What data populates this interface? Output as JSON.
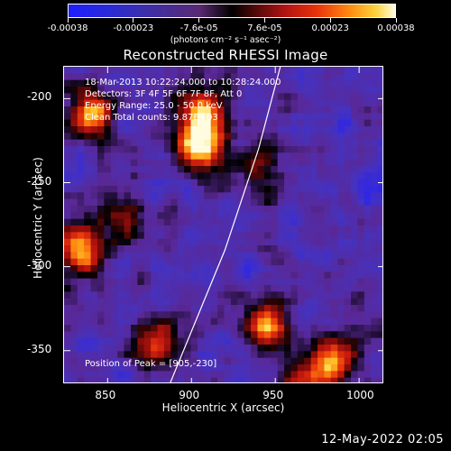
{
  "colorbar": {
    "tick_labels": [
      "-0.00038",
      "-0.00023",
      "-7.6e-05",
      "7.6e-05",
      "0.00023",
      "0.00038"
    ],
    "units": "(photons cm⁻² s⁻¹ asec⁻²)"
  },
  "title": "Reconstructed RHESSI Image",
  "annotation": {
    "time_range": "18-Mar-2013 10:22:24.000 to 10:28:24.000",
    "detectors": "Detectors: 3F 4F 5F 6F 7F 8F, Att 0",
    "energy": "Energy Range: 25.0 - 50.0 keV",
    "clean": "Clean    Total counts: 9.87E+03",
    "peak": "Position of Peak = [905,-230]"
  },
  "footer_date": "12-May-2022 02:05",
  "chart_data": {
    "type": "heatmap",
    "title": "Reconstructed RHESSI Image",
    "xlabel": "Heliocentric X (arcsec)",
    "ylabel": "Heliocentric Y (arcsec)",
    "xlim": [
      824,
      1015
    ],
    "ylim": [
      -370,
      -181
    ],
    "x_ticks": [
      850,
      900,
      950,
      1000
    ],
    "y_ticks": [
      -200,
      -250,
      -300,
      -350
    ],
    "value_range": [
      -0.00038,
      0.00038
    ],
    "colorscale": [
      "#1e1eff",
      "#4b2c8e",
      "#000000",
      "#b01212",
      "#ff8a10",
      "#fffce0"
    ],
    "peak_position": [
      905,
      -230
    ],
    "bright_sources": [
      {
        "x": 905,
        "y": -228,
        "level": 1.0
      },
      {
        "x": 906,
        "y": -205,
        "level": 0.7
      },
      {
        "x": 840,
        "y": -210,
        "level": 0.8
      },
      {
        "x": 833,
        "y": -290,
        "level": 0.85
      },
      {
        "x": 880,
        "y": -345,
        "level": 0.7
      },
      {
        "x": 945,
        "y": -335,
        "level": 0.75
      },
      {
        "x": 985,
        "y": -355,
        "level": 0.8
      },
      {
        "x": 968,
        "y": -370,
        "level": 0.6
      },
      {
        "x": 940,
        "y": -240,
        "level": 0.45
      },
      {
        "x": 860,
        "y": -270,
        "level": 0.4
      }
    ],
    "limb_curve": [
      [
        887,
        -370
      ],
      [
        920,
        -290
      ],
      [
        940,
        -230
      ],
      [
        953,
        -181
      ]
    ]
  }
}
